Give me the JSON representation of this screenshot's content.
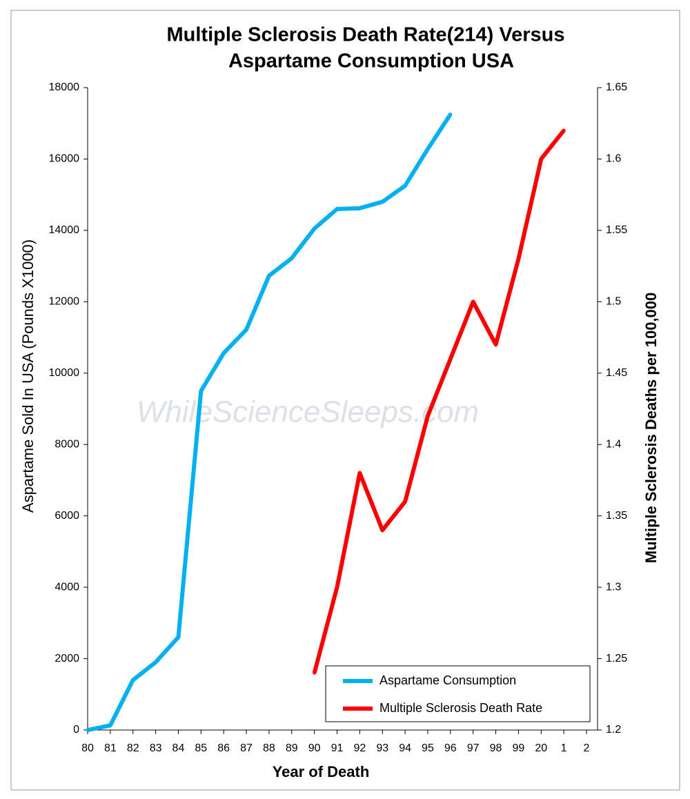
{
  "chart_data": {
    "type": "line",
    "title": [
      "Multiple Sclerosis Death Rate(214) Versus",
      "Aspartame Consumption USA"
    ],
    "xlabel": "Year of Death",
    "ylabel": "Aspartame Sold In USA  (Pounds X1000)",
    "y2label": "Multiple Sclerosis Deaths per 100,000",
    "watermark": "WhileScienceSleeps.com",
    "categories": [
      "80",
      "81",
      "82",
      "83",
      "84",
      "85",
      "86",
      "87",
      "88",
      "89",
      "90",
      "91",
      "92",
      "93",
      "94",
      "95",
      "96",
      "97",
      "98",
      "99",
      "20",
      "1",
      "2"
    ],
    "series": [
      {
        "name": "Aspartame Consumption",
        "color": "#00b0f0",
        "values": [
          0,
          130,
          1400,
          1900,
          2600,
          9500,
          10560,
          11220,
          12730,
          13220,
          14050,
          14600,
          14620,
          14800,
          15250,
          16280,
          17250,
          null,
          null,
          null,
          null,
          null,
          null
        ]
      },
      {
        "name": "Multiple Sclerosis Death Rate",
        "color": "#ff0000",
        "axis": "y2",
        "values": [
          null,
          null,
          null,
          null,
          null,
          null,
          null,
          null,
          null,
          null,
          1.24,
          1.3,
          1.38,
          1.34,
          1.36,
          1.42,
          1.46,
          1.5,
          1.47,
          1.53,
          1.6,
          1.62,
          null
        ]
      }
    ],
    "ylim": [
      0,
      18000
    ],
    "yticks": [
      0,
      2000,
      4000,
      6000,
      8000,
      10000,
      12000,
      14000,
      16000,
      18000
    ],
    "y2lim": [
      1.2,
      1.65
    ],
    "y2ticks": [
      1.2,
      1.25,
      1.3,
      1.35,
      1.4,
      1.45,
      1.5,
      1.55,
      1.6,
      1.65
    ],
    "legend": "lower right",
    "grid": false
  }
}
